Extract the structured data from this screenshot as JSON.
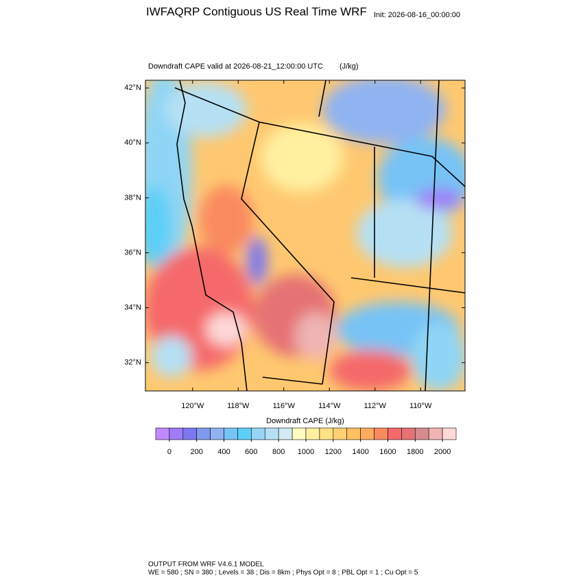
{
  "chart_data": {
    "type": "map",
    "title": "IWFAQRP Contiguous US Real Time WRF",
    "init_label": "Init: 2026-08-16_00:00:00",
    "subtitle": "Downdraft CAPE valid at 2026-08-21_12:00:00 UTC",
    "units": "(J/kg)",
    "xlim": [
      -122.07,
      -108.05
    ],
    "xticks": [
      {
        "value": -120,
        "label": "120°W"
      },
      {
        "value": -118,
        "label": "118°W"
      },
      {
        "value": -116,
        "label": "116°W"
      },
      {
        "value": -114,
        "label": "114°W"
      },
      {
        "value": -112,
        "label": "112°W"
      },
      {
        "value": -110,
        "label": "110°W"
      }
    ],
    "ylim": [
      30.97,
      42.28
    ],
    "yticks": [
      {
        "value": 32,
        "label": "32°N"
      },
      {
        "value": 34,
        "label": "34°N"
      },
      {
        "value": 36,
        "label": "36°N"
      },
      {
        "value": 38,
        "label": "38°N"
      },
      {
        "value": 40,
        "label": "40°N"
      },
      {
        "value": 42,
        "label": "42°N"
      }
    ],
    "colorbar": {
      "label": "Downdraft CAPE  (J/kg)",
      "lim": [
        -100,
        2100
      ],
      "ticks": [
        0,
        200,
        400,
        600,
        800,
        1000,
        1200,
        1400,
        1600,
        1800,
        2000
      ],
      "colors": [
        "#c08aff",
        "#9f7df7",
        "#7b78ef",
        "#8199ee",
        "#90b3f2",
        "#77c3f5",
        "#5ccff7",
        "#96d4f4",
        "#b5e0f4",
        "#d2ebf4",
        "#fffbc0",
        "#fff0a0",
        "#ffe382",
        "#ffd070",
        "#ffc060",
        "#ffab5f",
        "#f98a5e",
        "#f5696a",
        "#e57274",
        "#d78b8e",
        "#f0b4b4",
        "#ffd8d8"
      ]
    },
    "footer": [
      "OUTPUT FROM WRF V4.6.1 MODEL",
      "WE = 580 ; SN = 380 ; Levels = 38 ; Dis = 8km ; Phys Opt = 8 ; PBL Opt = 1 ; Cu Opt = 5"
    ]
  }
}
